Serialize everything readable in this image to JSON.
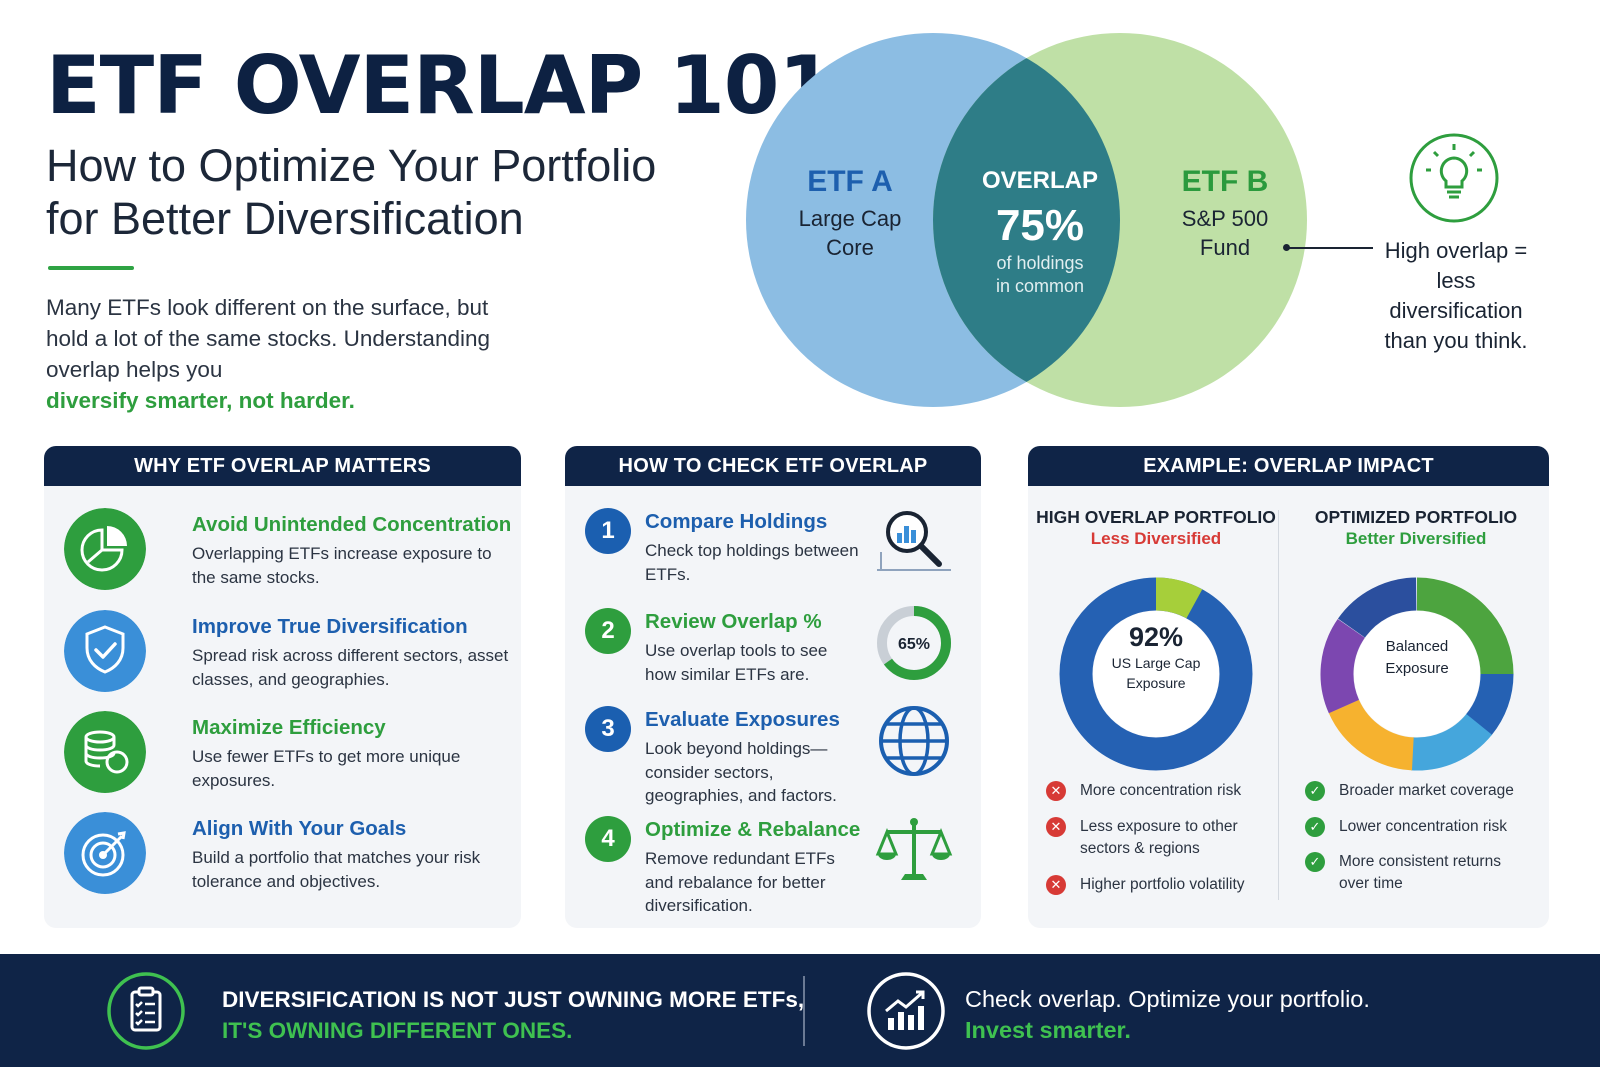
{
  "hero": {
    "title": "ETF OVERLAP 101:",
    "subtitle_line1": "How to Optimize Your Portfolio",
    "subtitle_line2": "for Better Diversification",
    "intro": "Many ETFs look different on the surface, but hold a lot of the same stocks. Understanding overlap helps you",
    "intro_highlight": "diversify smarter, not harder."
  },
  "venn": {
    "etf_a": {
      "title": "ETF A",
      "line1": "Large Cap",
      "line2": "Core"
    },
    "etf_b": {
      "title": "ETF B",
      "line1": "S&P 500",
      "line2": "Fund"
    },
    "overlap": {
      "title": "OVERLAP",
      "value": "75%",
      "line1": "of holdings",
      "line2": "in common"
    },
    "note": "High overlap = less diversification than you think.",
    "colors": {
      "a": "#8bbbe2",
      "b": "#b8dd9f",
      "overlap": "#2e7c86"
    }
  },
  "why_panel": {
    "header": "WHY ETF OVERLAP MATTERS",
    "items": [
      {
        "title": "Avoid Unintended Concentration",
        "desc": "Overlapping ETFs increase exposure to the same stocks.",
        "icon": "pie-chart-icon"
      },
      {
        "title": "Improve True Diversification",
        "desc": "Spread risk across different sectors, asset classes, and geographies.",
        "icon": "shield-check-icon"
      },
      {
        "title": "Maximize Efficiency",
        "desc": "Use fewer ETFs to get more unique exposures.",
        "icon": "coins-stack-icon"
      },
      {
        "title": "Align With Your Goals",
        "desc": "Build a portfolio that matches your risk tolerance and objectives.",
        "icon": "target-icon"
      }
    ]
  },
  "how_panel": {
    "header": "HOW TO CHECK ETF OVERLAP",
    "steps": [
      {
        "num": "1",
        "title": "Compare Holdings",
        "desc": "Check top holdings between ETFs.",
        "icon": "magnifier-chart-icon"
      },
      {
        "num": "2",
        "title": "Review Overlap %",
        "desc": "Use overlap tools to see how similar ETFs are.",
        "icon": "percent-ring-icon",
        "ring_value": "65%",
        "ring_fraction": 0.65
      },
      {
        "num": "3",
        "title": "Evaluate Exposures",
        "desc": "Look beyond holdings—consider sectors, geographies, and factors.",
        "icon": "globe-icon"
      },
      {
        "num": "4",
        "title": "Optimize & Rebalance",
        "desc": "Remove redundant ETFs and rebalance for better diversification.",
        "icon": "scales-icon"
      }
    ]
  },
  "example_panel": {
    "header": "EXAMPLE: OVERLAP IMPACT",
    "high": {
      "title": "HIGH OVERLAP PORTFOLIO",
      "subtitle": "Less Diversified",
      "center_value": "92%",
      "center_line1": "US Large Cap",
      "center_line2": "Exposure",
      "bullets": [
        "More concentration risk",
        "Less exposure to other sectors & regions",
        "Higher portfolio volatility"
      ]
    },
    "optimized": {
      "title": "OPTIMIZED PORTFOLIO",
      "subtitle": "Better Diversified",
      "center_line1": "Balanced",
      "center_line2": "Exposure",
      "bullets": [
        "Broader market coverage",
        "Lower concentration risk",
        "More consistent returns over time"
      ]
    }
  },
  "footer": {
    "line1": "DIVERSIFICATION IS NOT JUST OWNING MORE ETFs,",
    "line1_highlight": "IT'S OWNING DIFFERENT ONES.",
    "line2": "Check overlap. Optimize your portfolio.",
    "line2_highlight": "Invest smarter."
  }
}
